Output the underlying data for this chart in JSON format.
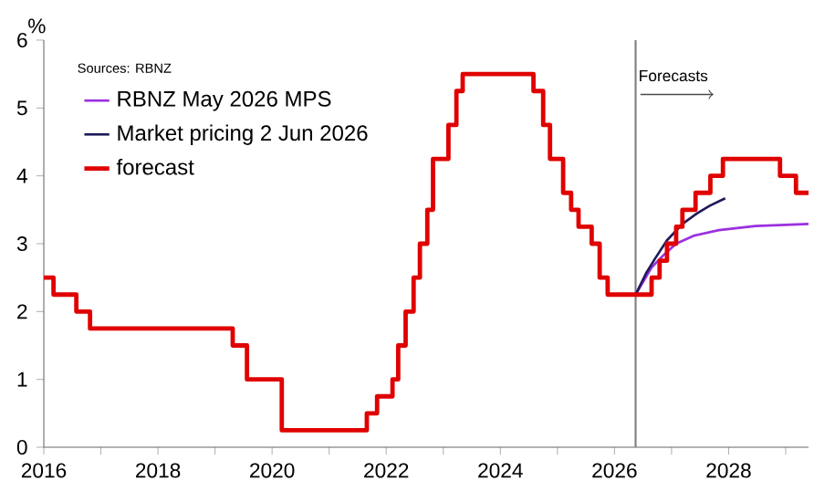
{
  "chart_data": {
    "type": "line",
    "ylabel": "%",
    "annotations": [
      "Sources: RBNZ"
    ],
    "xlim": [
      2016,
      2029.4
    ],
    "ylim": [
      0,
      6
    ],
    "xticks": [
      2016,
      {
        "value": 2017,
        "label": null
      },
      2018,
      {
        "value": 2019,
        "label": null
      },
      2020,
      {
        "value": 2021,
        "label": null
      },
      2022,
      {
        "value": 2023,
        "label": null
      },
      2024,
      {
        "value": 2025,
        "label": null
      },
      2026,
      {
        "value": 2027,
        "label": null
      },
      2028,
      {
        "value": 2029,
        "label": null
      }
    ],
    "yticks": [
      0,
      1,
      2,
      3,
      4,
      5,
      6
    ],
    "legend": "top left",
    "grid": false,
    "marker": "none",
    "line_style": "solid",
    "ref_lines": [
      {
        "axis": "x",
        "value": 2026.37,
        "label": "Forecasts",
        "color": "#7f7f7f"
      }
    ],
    "series": [
      {
        "name": "RBNZ May 2026 MPS",
        "type": "line",
        "color": "#9b30e0",
        "x": [
          2026.37,
          2026.65,
          2026.87,
          2027.08,
          2027.4,
          2027.83,
          2028.47,
          2029.4
        ],
        "values": [
          2.25,
          2.65,
          2.84,
          3.0,
          3.12,
          3.2,
          3.26,
          3.29
        ]
      },
      {
        "name": "Market pricing 2 Jun 2026",
        "type": "line",
        "color": "#1f1a5c",
        "x": [
          2026.37,
          2026.55,
          2026.71,
          2026.92,
          2027.19,
          2027.45,
          2027.67,
          2027.94
        ],
        "values": [
          2.25,
          2.56,
          2.78,
          3.05,
          3.29,
          3.45,
          3.56,
          3.67
        ]
      },
      {
        "name": "forecast",
        "type": "step",
        "color": "#e00000",
        "x": [
          2016,
          2016.17,
          2016.57,
          2016.81,
          2019.31,
          2019.56,
          2020.17,
          2021.66,
          2021.84,
          2022.11,
          2022.21,
          2022.34,
          2022.48,
          2022.59,
          2022.72,
          2022.82,
          2023.09,
          2023.23,
          2023.34,
          2024.58,
          2024.75,
          2024.87,
          2025.1,
          2025.24,
          2025.37,
          2025.6,
          2025.74,
          2025.88,
          2026.65,
          2026.79,
          2026.92,
          2027.08,
          2027.19,
          2027.42,
          2027.68,
          2027.9,
          2028.9,
          2029.18,
          2029.4
        ],
        "values": [
          2.5,
          2.25,
          2.0,
          1.75,
          1.5,
          1.0,
          0.25,
          0.5,
          0.75,
          1.0,
          1.5,
          2.0,
          2.5,
          3.0,
          3.5,
          4.25,
          4.75,
          5.25,
          5.5,
          5.25,
          4.75,
          4.25,
          3.75,
          3.5,
          3.25,
          3.0,
          2.5,
          2.25,
          2.5,
          2.75,
          3.0,
          3.25,
          3.5,
          3.75,
          4.0,
          4.25,
          4.0,
          3.75,
          3.75
        ]
      }
    ]
  }
}
